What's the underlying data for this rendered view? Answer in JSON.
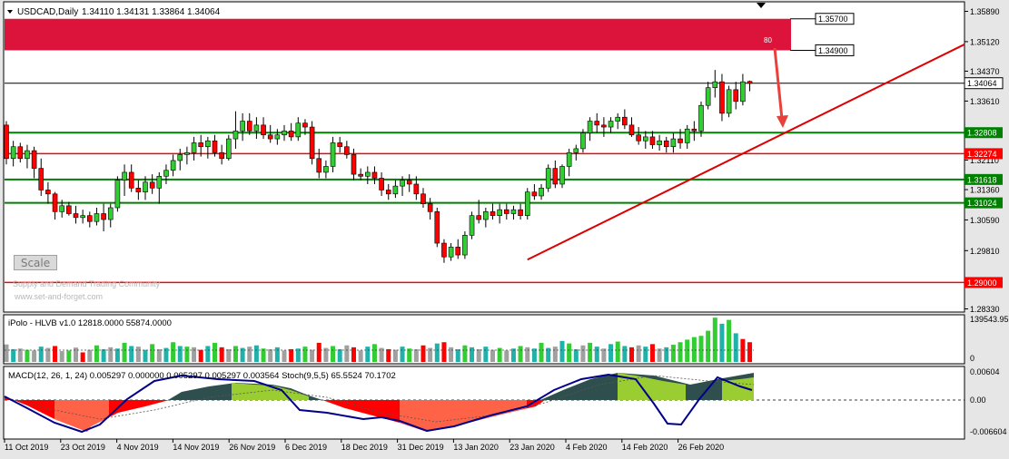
{
  "main_header": {
    "symbol": "USDCAD,Daily",
    "ohlc": "1.34110 1.34131 1.33864 1.34064"
  },
  "hlvb_header": "iPolo - HLVB v1.0 12818.0000 55874.0000",
  "macd_header": "MACD(12, 26, 1, 24) 0.005297 0.000000 0.005297 0.005297 0.003564  Stoch(9,5,5) 65.5524 70.1702",
  "watermark": {
    "line1": "Supply and Demand Trading Community",
    "line2": "www.set-and-forget.com"
  },
  "scale_button": "Scale",
  "zone_number": "80",
  "colors": {
    "bull": "#32cd32",
    "bear": "#ff0000",
    "supply_zone": "#dc143c",
    "support_line": "#008000",
    "resistance_line": "#ff0000",
    "trendline": "#dd0000",
    "arrow": "#e8403a",
    "macd_up_dark": "#2f4f4f",
    "macd_up_light": "#9acd32",
    "macd_down_dark": "#ff0000",
    "macd_down_light": "#ff6347",
    "stoch_line": "#00008b",
    "vol_grey": "#a0a0a0",
    "vol_teal": "#20b2aa"
  },
  "chart_data": {
    "type": "candlestick",
    "symbol": "USDCAD",
    "timeframe": "Daily",
    "price_axis_ticks": [
      "1.35890",
      "1.35120",
      "1.34370",
      "1.33610",
      "1.32110",
      "1.31360",
      "1.30590",
      "1.29810",
      "1.28330"
    ],
    "ylim": [
      1.282,
      1.36
    ],
    "x_tick_labels": [
      "11 Oct 2019",
      "23 Oct 2019",
      "4 Nov 2019",
      "14 Nov 2019",
      "26 Nov 2019",
      "6 Dec 2019",
      "18 Dec 2019",
      "31 Dec 2019",
      "13 Jan 2020",
      "23 Jan 2020",
      "4 Feb 2020",
      "14 Feb 2020",
      "26 Feb 2020"
    ],
    "level_labels": [
      {
        "text": "1.35700",
        "value": 1.357,
        "style": "zone-top"
      },
      {
        "text": "1.34900",
        "value": 1.349,
        "style": "zone-bottom"
      },
      {
        "text": "1.34064",
        "value": 1.34064,
        "style": "current"
      },
      {
        "text": "1.32808",
        "value": 1.32808,
        "style": "support"
      },
      {
        "text": "1.32274",
        "value": 1.32274,
        "style": "resistance"
      },
      {
        "text": "1.31618",
        "value": 1.31618,
        "style": "support"
      },
      {
        "text": "1.31024",
        "value": 1.31024,
        "style": "support"
      },
      {
        "text": "1.29000",
        "value": 1.29,
        "style": "resistance"
      }
    ],
    "supply_zone": {
      "top": 1.357,
      "bottom": 1.349
    },
    "trendline": {
      "from_index": 75,
      "from_price": 1.2958,
      "to_price": 1.3505
    },
    "candles": [
      [
        1.33,
        1.331,
        1.32,
        1.3215
      ],
      [
        1.3215,
        1.326,
        1.3195,
        1.3245
      ],
      [
        1.3245,
        1.3255,
        1.3205,
        1.3215
      ],
      [
        1.3215,
        1.325,
        1.319,
        1.3235
      ],
      [
        1.3235,
        1.3245,
        1.3165,
        1.319
      ],
      [
        1.319,
        1.3215,
        1.312,
        1.3135
      ],
      [
        1.3135,
        1.3155,
        1.31,
        1.3125
      ],
      [
        1.3125,
        1.313,
        1.306,
        1.308
      ],
      [
        1.308,
        1.311,
        1.3065,
        1.3095
      ],
      [
        1.3095,
        1.3105,
        1.307,
        1.3075
      ],
      [
        1.3075,
        1.3095,
        1.305,
        1.3065
      ],
      [
        1.3065,
        1.3085,
        1.305,
        1.307
      ],
      [
        1.307,
        1.308,
        1.304,
        1.3055
      ],
      [
        1.3055,
        1.309,
        1.3045,
        1.3075
      ],
      [
        1.3075,
        1.31,
        1.303,
        1.306
      ],
      [
        1.306,
        1.31,
        1.304,
        1.309
      ],
      [
        1.309,
        1.317,
        1.308,
        1.316
      ],
      [
        1.316,
        1.32,
        1.312,
        1.318
      ],
      [
        1.318,
        1.32,
        1.313,
        1.314
      ],
      [
        1.314,
        1.316,
        1.311,
        1.313
      ],
      [
        1.313,
        1.317,
        1.311,
        1.3155
      ],
      [
        1.3155,
        1.3175,
        1.3125,
        1.314
      ],
      [
        1.314,
        1.318,
        1.31,
        1.317
      ],
      [
        1.317,
        1.32,
        1.315,
        1.3185
      ],
      [
        1.3185,
        1.3225,
        1.317,
        1.321
      ],
      [
        1.321,
        1.324,
        1.3185,
        1.3225
      ],
      [
        1.3225,
        1.3245,
        1.32,
        1.323
      ],
      [
        1.323,
        1.327,
        1.321,
        1.3255
      ],
      [
        1.3255,
        1.3275,
        1.322,
        1.3245
      ],
      [
        1.3245,
        1.327,
        1.3215,
        1.326
      ],
      [
        1.326,
        1.3275,
        1.322,
        1.323
      ],
      [
        1.323,
        1.325,
        1.32,
        1.3215
      ],
      [
        1.3215,
        1.3275,
        1.321,
        1.3265
      ],
      [
        1.3265,
        1.3335,
        1.324,
        1.3285
      ],
      [
        1.3285,
        1.333,
        1.326,
        1.331
      ],
      [
        1.331,
        1.333,
        1.3275,
        1.3285
      ],
      [
        1.3285,
        1.332,
        1.3265,
        1.33
      ],
      [
        1.33,
        1.332,
        1.3265,
        1.3275
      ],
      [
        1.3275,
        1.33,
        1.3255,
        1.3265
      ],
      [
        1.3265,
        1.329,
        1.325,
        1.3275
      ],
      [
        1.3275,
        1.33,
        1.326,
        1.3285
      ],
      [
        1.3285,
        1.3305,
        1.326,
        1.327
      ],
      [
        1.327,
        1.332,
        1.326,
        1.3305
      ],
      [
        1.3305,
        1.3315,
        1.3275,
        1.3295
      ],
      [
        1.3295,
        1.331,
        1.32,
        1.3215
      ],
      [
        1.3215,
        1.324,
        1.3165,
        1.318
      ],
      [
        1.318,
        1.321,
        1.3165,
        1.3195
      ],
      [
        1.3195,
        1.327,
        1.318,
        1.3255
      ],
      [
        1.3255,
        1.327,
        1.323,
        1.3245
      ],
      [
        1.3245,
        1.326,
        1.3215,
        1.3225
      ],
      [
        1.3225,
        1.324,
        1.316,
        1.3175
      ],
      [
        1.3175,
        1.319,
        1.316,
        1.317
      ],
      [
        1.317,
        1.3195,
        1.315,
        1.318
      ],
      [
        1.318,
        1.3195,
        1.315,
        1.3165
      ],
      [
        1.3165,
        1.318,
        1.312,
        1.3135
      ],
      [
        1.3135,
        1.315,
        1.311,
        1.3125
      ],
      [
        1.3125,
        1.316,
        1.3115,
        1.3145
      ],
      [
        1.3145,
        1.317,
        1.312,
        1.316
      ],
      [
        1.316,
        1.3175,
        1.313,
        1.315
      ],
      [
        1.315,
        1.317,
        1.311,
        1.3125
      ],
      [
        1.3125,
        1.314,
        1.309,
        1.31
      ],
      [
        1.31,
        1.3115,
        1.306,
        1.308
      ],
      [
        1.308,
        1.309,
        1.299,
        1.3
      ],
      [
        1.3,
        1.301,
        1.295,
        1.2965
      ],
      [
        1.2965,
        1.3,
        1.2955,
        1.299
      ],
      [
        1.299,
        1.301,
        1.296,
        1.297
      ],
      [
        1.297,
        1.303,
        1.296,
        1.302
      ],
      [
        1.302,
        1.308,
        1.301,
        1.307
      ],
      [
        1.307,
        1.311,
        1.305,
        1.306
      ],
      [
        1.306,
        1.309,
        1.304,
        1.308
      ],
      [
        1.308,
        1.31,
        1.306,
        1.307
      ],
      [
        1.307,
        1.31,
        1.305,
        1.3085
      ],
      [
        1.3085,
        1.31,
        1.306,
        1.3075
      ],
      [
        1.3075,
        1.3095,
        1.306,
        1.3085
      ],
      [
        1.3085,
        1.31,
        1.306,
        1.307
      ],
      [
        1.307,
        1.314,
        1.306,
        1.313
      ],
      [
        1.313,
        1.315,
        1.311,
        1.312
      ],
      [
        1.312,
        1.315,
        1.311,
        1.314
      ],
      [
        1.314,
        1.32,
        1.313,
        1.319
      ],
      [
        1.319,
        1.321,
        1.314,
        1.315
      ],
      [
        1.315,
        1.32,
        1.314,
        1.3195
      ],
      [
        1.3195,
        1.324,
        1.317,
        1.323
      ],
      [
        1.323,
        1.325,
        1.321,
        1.324
      ],
      [
        1.324,
        1.329,
        1.323,
        1.328
      ],
      [
        1.328,
        1.332,
        1.326,
        1.331
      ],
      [
        1.331,
        1.333,
        1.328,
        1.33
      ],
      [
        1.33,
        1.332,
        1.327,
        1.3295
      ],
      [
        1.3295,
        1.332,
        1.328,
        1.331
      ],
      [
        1.331,
        1.333,
        1.329,
        1.332
      ],
      [
        1.332,
        1.334,
        1.329,
        1.33
      ],
      [
        1.33,
        1.332,
        1.327,
        1.3275
      ],
      [
        1.3275,
        1.3295,
        1.325,
        1.326
      ],
      [
        1.326,
        1.3285,
        1.324,
        1.327
      ],
      [
        1.327,
        1.3285,
        1.324,
        1.325
      ],
      [
        1.325,
        1.3275,
        1.3235,
        1.326
      ],
      [
        1.326,
        1.327,
        1.323,
        1.3245
      ],
      [
        1.3245,
        1.328,
        1.323,
        1.3265
      ],
      [
        1.3265,
        1.329,
        1.324,
        1.3255
      ],
      [
        1.3255,
        1.33,
        1.324,
        1.329
      ],
      [
        1.329,
        1.331,
        1.326,
        1.3285
      ],
      [
        1.3285,
        1.336,
        1.327,
        1.335
      ],
      [
        1.335,
        1.341,
        1.334,
        1.3395
      ],
      [
        1.3395,
        1.344,
        1.337,
        1.341
      ],
      [
        1.341,
        1.343,
        1.331,
        1.333
      ],
      [
        1.333,
        1.34,
        1.332,
        1.339
      ],
      [
        1.339,
        1.341,
        1.334,
        1.336
      ],
      [
        1.336,
        1.343,
        1.335,
        1.341
      ],
      [
        1.3411,
        1.3413,
        1.3386,
        1.3406
      ]
    ]
  },
  "hlvb_data": {
    "axis_ticks": [
      "139543.95",
      "0"
    ],
    "max": 139543.95,
    "volumes": [
      [
        55000,
        "grey"
      ],
      [
        40000,
        "teal"
      ],
      [
        42000,
        "grey"
      ],
      [
        38000,
        "green"
      ],
      [
        36000,
        "grey"
      ],
      [
        48000,
        "teal"
      ],
      [
        44000,
        "grey"
      ],
      [
        50000,
        "red"
      ],
      [
        34000,
        "grey"
      ],
      [
        36000,
        "green"
      ],
      [
        45000,
        "grey"
      ],
      [
        30000,
        "red"
      ],
      [
        38000,
        "grey"
      ],
      [
        52000,
        "green"
      ],
      [
        40000,
        "teal"
      ],
      [
        46000,
        "grey"
      ],
      [
        42000,
        "teal"
      ],
      [
        60000,
        "green"
      ],
      [
        50000,
        "teal"
      ],
      [
        48000,
        "grey"
      ],
      [
        38000,
        "teal"
      ],
      [
        56000,
        "green"
      ],
      [
        40000,
        "grey"
      ],
      [
        44000,
        "teal"
      ],
      [
        62000,
        "green"
      ],
      [
        50000,
        "teal"
      ],
      [
        48000,
        "green"
      ],
      [
        46000,
        "grey"
      ],
      [
        38000,
        "red"
      ],
      [
        50000,
        "teal"
      ],
      [
        60000,
        "green"
      ],
      [
        46000,
        "red"
      ],
      [
        40000,
        "grey"
      ],
      [
        50000,
        "green"
      ],
      [
        44000,
        "teal"
      ],
      [
        48000,
        "grey"
      ],
      [
        52000,
        "teal"
      ],
      [
        42000,
        "green"
      ],
      [
        40000,
        "grey"
      ],
      [
        46000,
        "teal"
      ],
      [
        36000,
        "grey"
      ],
      [
        40000,
        "red"
      ],
      [
        42000,
        "teal"
      ],
      [
        48000,
        "green"
      ],
      [
        38000,
        "grey"
      ],
      [
        60000,
        "red"
      ],
      [
        44000,
        "grey"
      ],
      [
        50000,
        "green"
      ],
      [
        40000,
        "teal"
      ],
      [
        52000,
        "grey"
      ],
      [
        46000,
        "red"
      ],
      [
        36000,
        "grey"
      ],
      [
        48000,
        "teal"
      ],
      [
        56000,
        "green"
      ],
      [
        44000,
        "grey"
      ],
      [
        40000,
        "red"
      ],
      [
        38000,
        "grey"
      ],
      [
        48000,
        "teal"
      ],
      [
        42000,
        "green"
      ],
      [
        40000,
        "grey"
      ],
      [
        52000,
        "red"
      ],
      [
        44000,
        "grey"
      ],
      [
        58000,
        "teal"
      ],
      [
        62000,
        "red"
      ],
      [
        46000,
        "grey"
      ],
      [
        40000,
        "teal"
      ],
      [
        52000,
        "green"
      ],
      [
        46000,
        "teal"
      ],
      [
        40000,
        "grey"
      ],
      [
        48000,
        "teal"
      ],
      [
        38000,
        "grey"
      ],
      [
        44000,
        "green"
      ],
      [
        36000,
        "grey"
      ],
      [
        42000,
        "teal"
      ],
      [
        50000,
        "green"
      ],
      [
        46000,
        "grey"
      ],
      [
        42000,
        "teal"
      ],
      [
        60000,
        "green"
      ],
      [
        44000,
        "teal"
      ],
      [
        48000,
        "grey"
      ],
      [
        66000,
        "teal"
      ],
      [
        58000,
        "green"
      ],
      [
        40000,
        "teal"
      ],
      [
        52000,
        "grey"
      ],
      [
        60000,
        "green"
      ],
      [
        48000,
        "teal"
      ],
      [
        42000,
        "grey"
      ],
      [
        56000,
        "teal"
      ],
      [
        64000,
        "green"
      ],
      [
        50000,
        "teal"
      ],
      [
        46000,
        "red"
      ],
      [
        52000,
        "grey"
      ],
      [
        48000,
        "teal"
      ],
      [
        56000,
        "red"
      ],
      [
        42000,
        "grey"
      ],
      [
        46000,
        "teal"
      ],
      [
        54000,
        "green"
      ],
      [
        62000,
        "green"
      ],
      [
        70000,
        "green"
      ],
      [
        78000,
        "green"
      ],
      [
        82000,
        "green"
      ],
      [
        98000,
        "green"
      ],
      [
        139000,
        "green"
      ],
      [
        120000,
        "teal"
      ],
      [
        132000,
        "green"
      ],
      [
        90000,
        "teal"
      ],
      [
        72000,
        "red"
      ],
      [
        62000,
        "red"
      ]
    ]
  },
  "macd_data": {
    "axis_ticks": [
      "0.00604",
      "0.00",
      "-0.006604"
    ],
    "ylim": [
      -0.0066,
      0.0064
    ]
  }
}
